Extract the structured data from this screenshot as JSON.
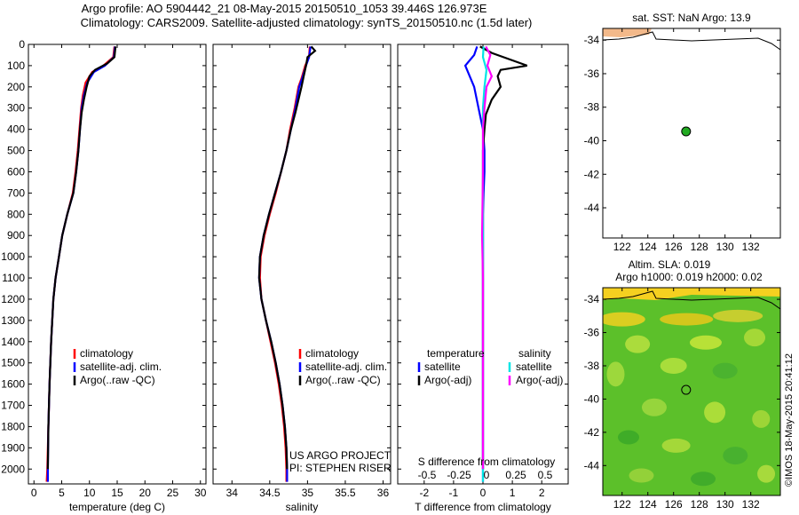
{
  "header": {
    "line1": "Argo profile: AO 5904442_21 08-May-2015 20150510_1053 39.446S 126.973E",
    "line2": "Climatology: CARS2009. Satellite-adjusted climatology: synTS_20150510.nc (1.5d later)"
  },
  "credit": "©IMOS 18-May-2015 20:41:12",
  "colors": {
    "climatology": "#ff0000",
    "satellite": "#0000ff",
    "argo": "#000000",
    "sal_satellite": "#00e5e5",
    "sal_argo": "#ff00ff",
    "land": "#f3b98a",
    "float_marker": "#22aa22"
  },
  "depth_axis": {
    "ticks": [
      0,
      100,
      200,
      300,
      400,
      500,
      600,
      700,
      800,
      900,
      1000,
      1100,
      1200,
      1300,
      1400,
      1500,
      1600,
      1700,
      1800,
      1900,
      2000
    ],
    "ylim": [
      0,
      2070
    ]
  },
  "chart_data": [
    {
      "type": "line",
      "panel": "temperature",
      "xlabel": "temperature (deg C)",
      "xlim": [
        -1,
        31
      ],
      "xticks": [
        0,
        5,
        10,
        15,
        20,
        25,
        30
      ],
      "legend": [
        "climatology",
        "satellite-adj. clim.",
        "Argo(..raw -QC)"
      ],
      "series": [
        {
          "name": "climatology",
          "color": "#ff0000",
          "points": [
            [
              14.5,
              10
            ],
            [
              14.3,
              60
            ],
            [
              12.5,
              100
            ],
            [
              10.5,
              130
            ],
            [
              9.3,
              180
            ],
            [
              8.8,
              240
            ],
            [
              8.5,
              300
            ],
            [
              8.2,
              400
            ],
            [
              7.9,
              500
            ],
            [
              7.5,
              600
            ],
            [
              7.0,
              700
            ],
            [
              6.0,
              800
            ],
            [
              5.1,
              900
            ],
            [
              4.5,
              1000
            ],
            [
              3.9,
              1100
            ],
            [
              3.5,
              1200
            ],
            [
              3.1,
              1400
            ],
            [
              2.8,
              1600
            ],
            [
              2.6,
              1800
            ],
            [
              2.4,
              2000
            ],
            [
              2.3,
              2060
            ]
          ]
        },
        {
          "name": "satellite-adj. clim.",
          "color": "#0000ff",
          "points": [
            [
              14.6,
              10
            ],
            [
              14.4,
              60
            ],
            [
              12.8,
              100
            ],
            [
              10.8,
              130
            ],
            [
              9.6,
              180
            ],
            [
              9.0,
              240
            ],
            [
              8.6,
              300
            ],
            [
              8.3,
              400
            ],
            [
              8.0,
              500
            ],
            [
              7.6,
              600
            ],
            [
              7.1,
              700
            ],
            [
              6.0,
              800
            ],
            [
              5.1,
              900
            ],
            [
              4.5,
              1000
            ],
            [
              3.9,
              1100
            ],
            [
              3.5,
              1200
            ],
            [
              3.1,
              1400
            ],
            [
              2.8,
              1600
            ],
            [
              2.6,
              1800
            ],
            [
              2.5,
              2000
            ],
            [
              2.5,
              2060
            ]
          ]
        },
        {
          "name": "Argo(..raw -QC)",
          "color": "#000000",
          "points": [
            [
              14.7,
              10
            ],
            [
              14.5,
              60
            ],
            [
              13.2,
              90
            ],
            [
              11.0,
              120
            ],
            [
              10.0,
              150
            ],
            [
              9.5,
              200
            ],
            [
              9.0,
              260
            ],
            [
              8.6,
              320
            ],
            [
              8.3,
              400
            ],
            [
              8.0,
              500
            ],
            [
              7.6,
              600
            ],
            [
              7.1,
              700
            ],
            [
              6.0,
              800
            ],
            [
              5.1,
              900
            ],
            [
              4.5,
              1000
            ],
            [
              3.9,
              1100
            ],
            [
              3.5,
              1200
            ],
            [
              3.1,
              1400
            ],
            [
              2.8,
              1600
            ],
            [
              2.6,
              1800
            ],
            [
              2.5,
              2000
            ]
          ]
        }
      ]
    },
    {
      "type": "line",
      "panel": "salinity",
      "xlabel": "salinity",
      "xlim": [
        33.75,
        36.1
      ],
      "xticks": [
        34,
        34.5,
        35,
        35.5,
        36
      ],
      "legend": [
        "climatology",
        "satellite-adj. clim.",
        "Argo(..raw -QC)"
      ],
      "annotation": [
        "US ARGO PROJECT",
        "PI: STEPHEN RISER"
      ],
      "series": [
        {
          "name": "climatology",
          "color": "#ff0000",
          "points": [
            [
              35.03,
              10
            ],
            [
              35.02,
              60
            ],
            [
              34.97,
              100
            ],
            [
              34.92,
              160
            ],
            [
              34.88,
              200
            ],
            [
              34.85,
              260
            ],
            [
              34.83,
              300
            ],
            [
              34.77,
              400
            ],
            [
              34.72,
              500
            ],
            [
              34.65,
              600
            ],
            [
              34.58,
              700
            ],
            [
              34.5,
              800
            ],
            [
              34.43,
              900
            ],
            [
              34.38,
              1000
            ],
            [
              34.37,
              1100
            ],
            [
              34.39,
              1200
            ],
            [
              34.45,
              1300
            ],
            [
              34.51,
              1400
            ],
            [
              34.57,
              1500
            ],
            [
              34.62,
              1600
            ],
            [
              34.66,
              1700
            ],
            [
              34.69,
              1800
            ],
            [
              34.71,
              1900
            ],
            [
              34.72,
              2000
            ],
            [
              34.72,
              2060
            ]
          ]
        },
        {
          "name": "satellite-adj. clim.",
          "color": "#0000ff",
          "points": [
            [
              35.04,
              10
            ],
            [
              35.02,
              60
            ],
            [
              34.98,
              100
            ],
            [
              34.93,
              160
            ],
            [
              34.89,
              200
            ],
            [
              34.86,
              260
            ],
            [
              34.84,
              300
            ],
            [
              34.78,
              400
            ],
            [
              34.72,
              500
            ],
            [
              34.65,
              600
            ],
            [
              34.57,
              700
            ],
            [
              34.49,
              800
            ],
            [
              34.42,
              900
            ],
            [
              34.37,
              1000
            ],
            [
              34.36,
              1100
            ],
            [
              34.39,
              1200
            ],
            [
              34.45,
              1300
            ],
            [
              34.52,
              1400
            ],
            [
              34.58,
              1500
            ],
            [
              34.63,
              1600
            ],
            [
              34.67,
              1700
            ],
            [
              34.7,
              1800
            ],
            [
              34.72,
              1900
            ],
            [
              34.73,
              2000
            ],
            [
              34.73,
              2060
            ]
          ]
        },
        {
          "name": "Argo(..raw -QC)",
          "color": "#000000",
          "points": [
            [
              35.05,
              10
            ],
            [
              35.1,
              30
            ],
            [
              35.0,
              60
            ],
            [
              34.98,
              100
            ],
            [
              34.95,
              150
            ],
            [
              34.92,
              200
            ],
            [
              34.88,
              260
            ],
            [
              34.84,
              320
            ],
            [
              34.78,
              400
            ],
            [
              34.72,
              500
            ],
            [
              34.65,
              600
            ],
            [
              34.57,
              700
            ],
            [
              34.49,
              800
            ],
            [
              34.42,
              900
            ],
            [
              34.37,
              1000
            ],
            [
              34.36,
              1100
            ],
            [
              34.39,
              1200
            ],
            [
              34.45,
              1300
            ],
            [
              34.52,
              1400
            ],
            [
              34.58,
              1500
            ],
            [
              34.63,
              1600
            ],
            [
              34.67,
              1700
            ],
            [
              34.7,
              1800
            ],
            [
              34.72,
              1900
            ],
            [
              34.73,
              2000
            ]
          ]
        }
      ]
    },
    {
      "type": "line",
      "panel": "difference",
      "xlabel": "T difference from climatology",
      "xlabel_top": "S difference from climatology",
      "xlim": [
        -2.9,
        2.9
      ],
      "xticks": [
        -2,
        -1,
        0,
        1,
        2
      ],
      "xticks_top": [
        -0.5,
        -0.25,
        0,
        0.25,
        0.5
      ],
      "legend_temperature": [
        "temperature",
        "satellite",
        "Argo(-adj)"
      ],
      "legend_salinity": [
        "salinity",
        "satellite",
        "Argo(-adj)"
      ],
      "series": [
        {
          "name": "T satellite",
          "color": "#0000ff",
          "points": [
            [
              -0.2,
              10
            ],
            [
              -0.3,
              50
            ],
            [
              -0.6,
              100
            ],
            [
              -0.3,
              200
            ],
            [
              -0.15,
              300
            ],
            [
              0.0,
              400
            ],
            [
              0.05,
              500
            ],
            [
              0.05,
              600
            ],
            [
              0.02,
              700
            ],
            [
              0.0,
              800
            ],
            [
              0.0,
              1000
            ],
            [
              0.0,
              1200
            ],
            [
              0.0,
              1500
            ],
            [
              0.0,
              1800
            ],
            [
              0.0,
              2060
            ]
          ]
        },
        {
          "name": "T Argo(-adj)",
          "color": "#000000",
          "points": [
            [
              -0.1,
              10
            ],
            [
              0.3,
              40
            ],
            [
              1.5,
              100
            ],
            [
              0.6,
              120
            ],
            [
              0.5,
              150
            ],
            [
              0.6,
              200
            ],
            [
              0.3,
              260
            ],
            [
              0.1,
              330
            ],
            [
              0.05,
              400
            ],
            [
              0.0,
              500
            ],
            [
              0.0,
              600
            ],
            [
              0.0,
              800
            ],
            [
              0.0,
              1000
            ],
            [
              0.0,
              1300
            ],
            [
              0.0,
              1600
            ],
            [
              0.0,
              2000
            ]
          ]
        },
        {
          "name": "S satellite",
          "color": "#00e5e5",
          "points": [
            [
              0.02,
              10
            ],
            [
              0.0,
              60
            ],
            [
              0.12,
              120
            ],
            [
              0.05,
              200
            ],
            [
              0.0,
              300
            ],
            [
              0.0,
              500
            ],
            [
              0.0,
              800
            ],
            [
              0.0,
              1200
            ],
            [
              0.0,
              1600
            ],
            [
              0.0,
              2060
            ]
          ]
        },
        {
          "name": "S Argo(-adj)",
          "color": "#ff00ff",
          "points": [
            [
              0.1,
              10
            ],
            [
              0.25,
              50
            ],
            [
              0.15,
              100
            ],
            [
              0.3,
              150
            ],
            [
              0.12,
              200
            ],
            [
              0.05,
              300
            ],
            [
              0.0,
              400
            ],
            [
              0.0,
              600
            ],
            [
              -0.03,
              900
            ],
            [
              0.0,
              1100
            ],
            [
              0.0,
              1500
            ],
            [
              0.0,
              2000
            ]
          ]
        }
      ]
    },
    {
      "type": "map",
      "panel": "sst-map",
      "title": "sat. SST: NaN Argo: 13.9",
      "xlim": [
        120.5,
        134.3
      ],
      "ylim": [
        -45.8,
        -33.3
      ],
      "xticks": [
        122,
        124,
        126,
        128,
        130,
        132
      ],
      "yticks": [
        -34,
        -36,
        -38,
        -40,
        -42,
        -44
      ],
      "argo_position": [
        126.973,
        -39.446
      ]
    },
    {
      "type": "map",
      "panel": "sla-map",
      "title_lines": [
        "Altim. SLA: 0.019",
        "Argo h1000: 0.019 h2000: 0.02"
      ],
      "xlim": [
        120.5,
        134.3
      ],
      "ylim": [
        -45.8,
        -33.3
      ],
      "xticks": [
        122,
        124,
        126,
        128,
        130,
        132
      ],
      "yticks": [
        -34,
        -36,
        -38,
        -40,
        -42,
        -44
      ],
      "argo_position": [
        126.973,
        -39.446
      ]
    }
  ]
}
